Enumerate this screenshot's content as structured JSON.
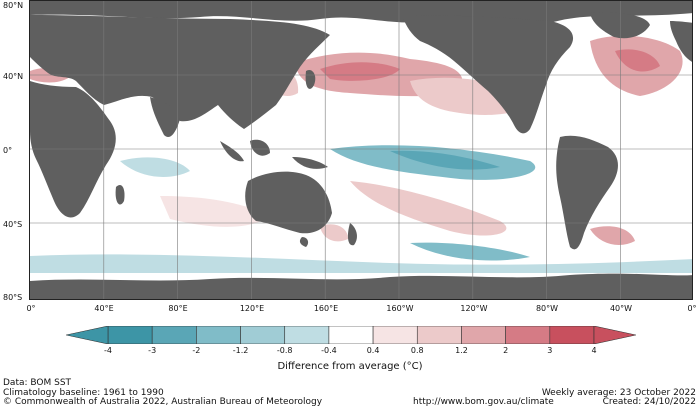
{
  "map": {
    "lat_labels": [
      "80°N",
      "40°N",
      "0°",
      "40°S",
      "80°S"
    ],
    "lon_labels": [
      "0°",
      "40°E",
      "80°E",
      "120°E",
      "160°E",
      "160°W",
      "120°W",
      "80°W",
      "40°W",
      "0°"
    ],
    "colors": {
      "land": "#5f5f5f",
      "ocean_neutral": "#ffffff",
      "grid": "#7a7a7a"
    }
  },
  "legend": {
    "title": "Difference from average (°C)",
    "ticks": [
      "-4",
      "-3",
      "-2",
      "-1.2",
      "-0.8",
      "-0.4",
      "0.4",
      "0.8",
      "1.2",
      "2",
      "3",
      "4"
    ],
    "colors": [
      "#3d95a6",
      "#5aa6b6",
      "#80bcc8",
      "#a0ccd5",
      "#bfdde3",
      "#ffffff",
      "#f6e4e4",
      "#eccaca",
      "#e0a6aa",
      "#d57b85",
      "#c8505e"
    ],
    "end_colors": {
      "low": "#3d95a6",
      "high": "#c8505e"
    }
  },
  "footer": {
    "data": "Data: BOM SST",
    "baseline": "Climatology baseline: 1961 to 1990",
    "copyright": "© Commonwealth of Australia 2022, Australian Bureau of Meteorology",
    "url": "http://www.bom.gov.au/climate",
    "weekly": "Weekly average: 23 October 2022",
    "created": "Created: 24/10/2022"
  }
}
